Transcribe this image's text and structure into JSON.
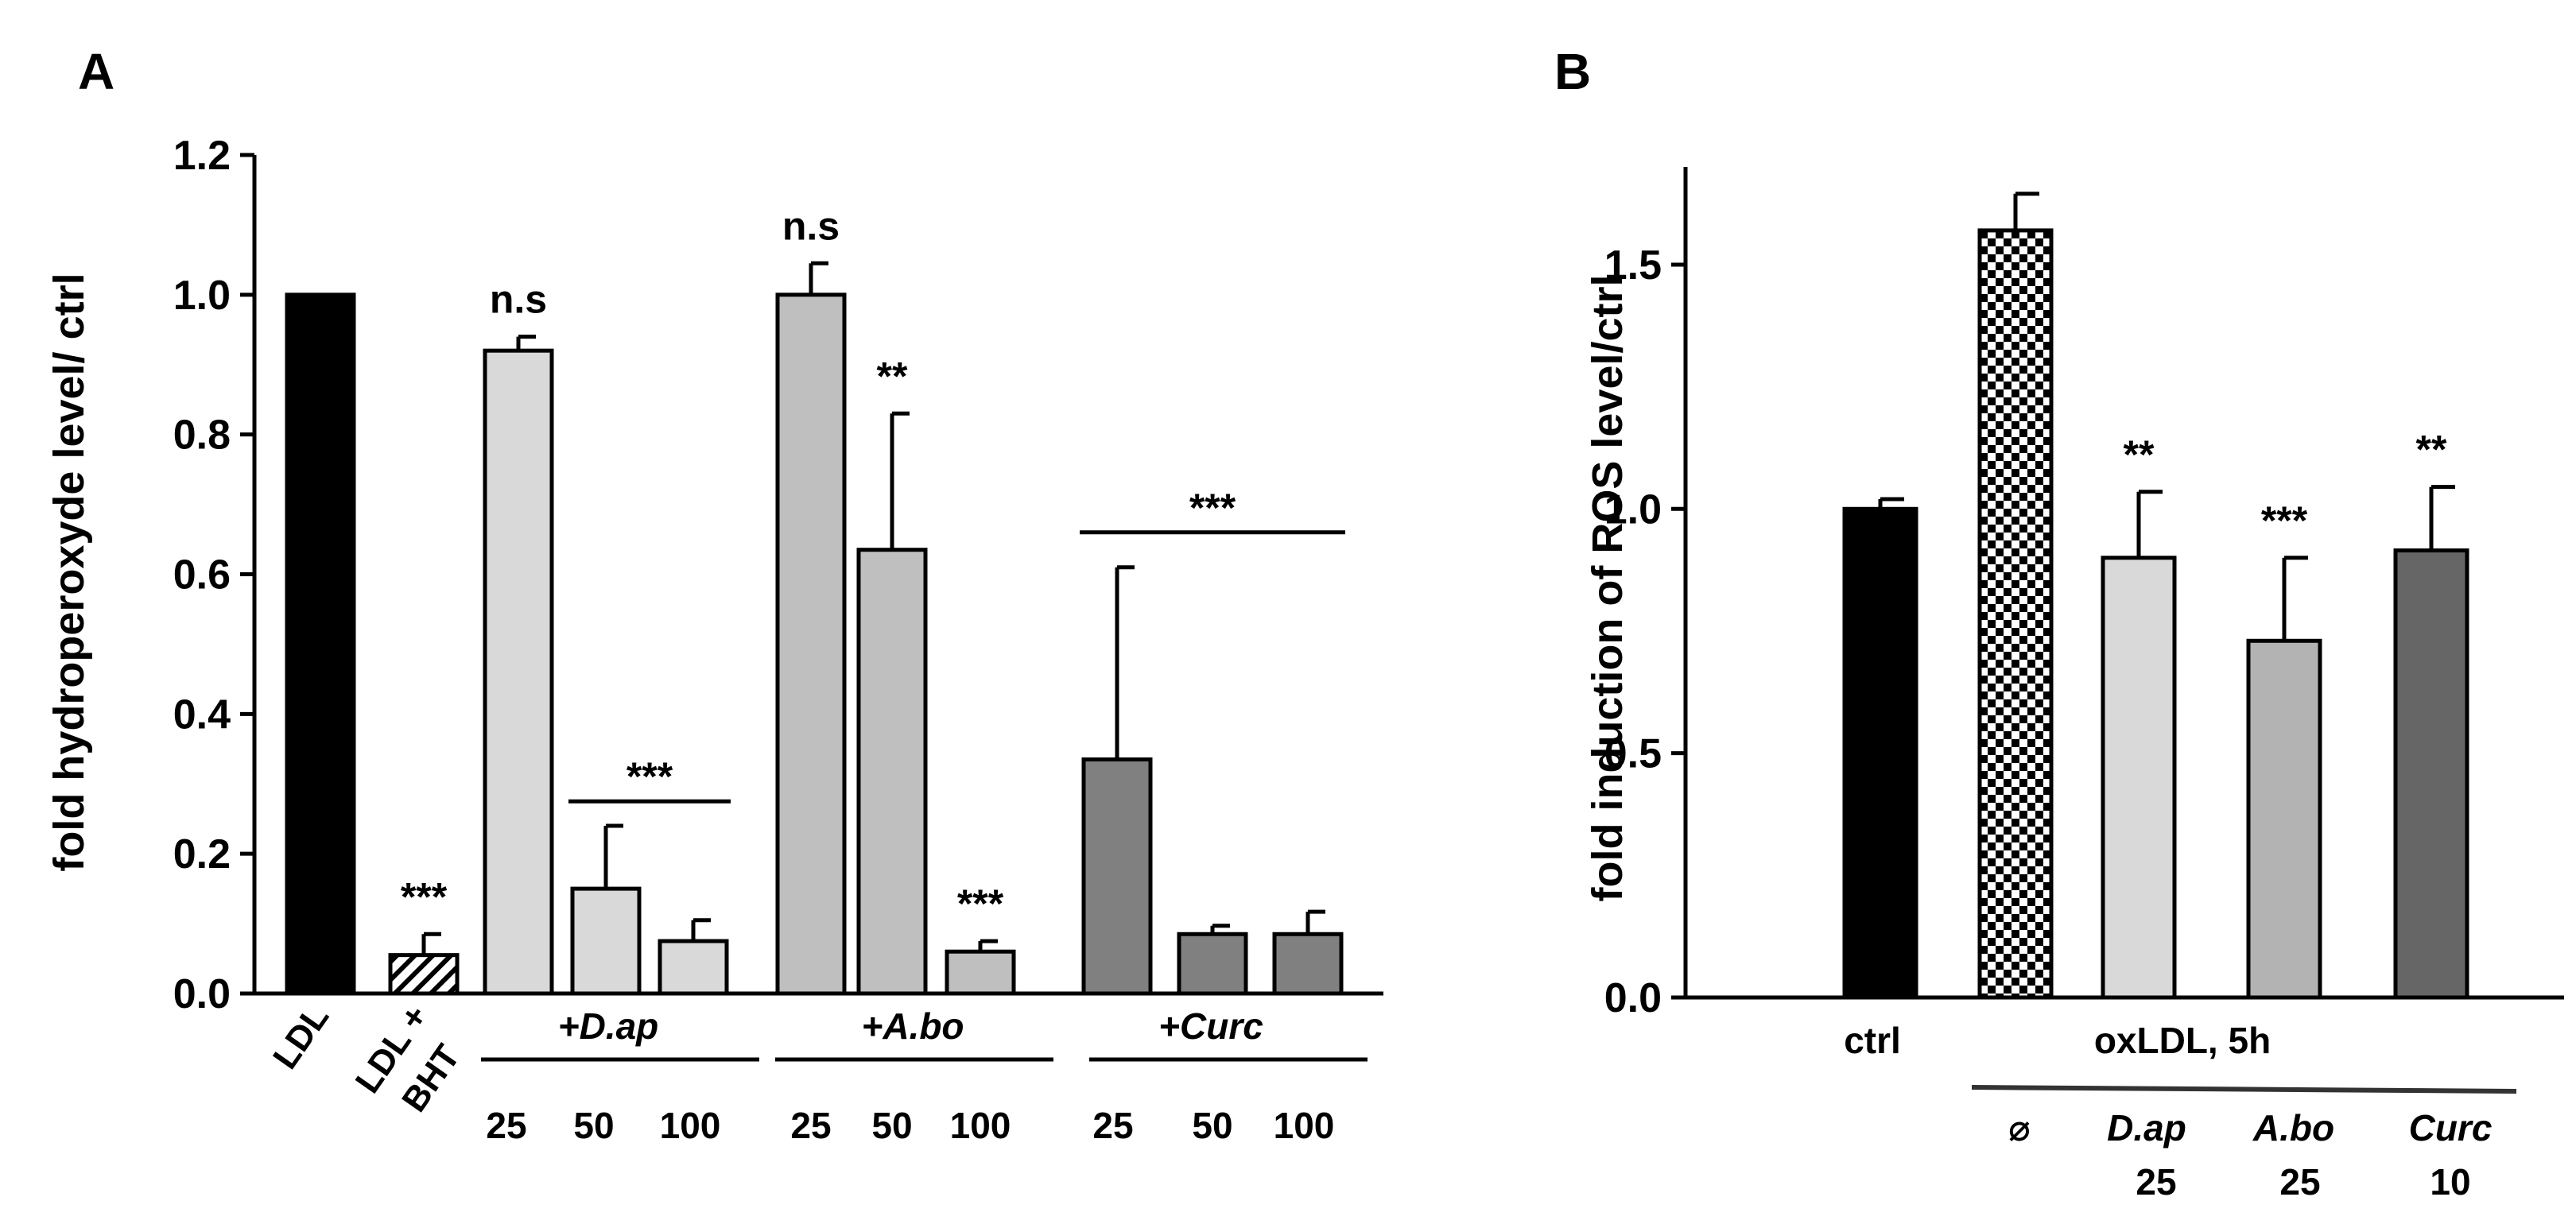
{
  "chart_data": [
    {
      "panel": "A",
      "type": "bar",
      "title": "",
      "ylabel": "fold hydroperoxyde level/ ctrl",
      "xlabel": "",
      "ylim": [
        0,
        1.2
      ],
      "yticks": [
        "0.0",
        "0.2",
        "0.4",
        "0.6",
        "0.8",
        "1.0",
        "1.2"
      ],
      "grid": false,
      "bars": [
        {
          "id": "ldl",
          "value": 1.0,
          "error": 0,
          "fill": "black",
          "sig": ""
        },
        {
          "id": "ldl-bht",
          "value": 0.055,
          "error": 0.03,
          "fill": "hatch",
          "sig": "***"
        },
        {
          "id": "dap-25",
          "value": 0.92,
          "error": 0.02,
          "fill": "#d9d9d9",
          "sig": "n.s"
        },
        {
          "id": "dap-50",
          "value": 0.15,
          "error": 0.09,
          "fill": "#d9d9d9",
          "sig": ""
        },
        {
          "id": "dap-100",
          "value": 0.075,
          "error": 0.03,
          "fill": "#d9d9d9",
          "sig": ""
        },
        {
          "id": "abo-25",
          "value": 1.0,
          "error": 0.045,
          "fill": "#bfbfbf",
          "sig": "n.s"
        },
        {
          "id": "abo-50",
          "value": 0.635,
          "error": 0.195,
          "fill": "#bfbfbf",
          "sig": "**"
        },
        {
          "id": "abo-100",
          "value": 0.06,
          "error": 0.015,
          "fill": "#bfbfbf",
          "sig": "***"
        },
        {
          "id": "curc-25",
          "value": 0.335,
          "error": 0.275,
          "fill": "#808080",
          "sig": ""
        },
        {
          "id": "curc-50",
          "value": 0.085,
          "error": 0.012,
          "fill": "#808080",
          "sig": ""
        },
        {
          "id": "curc-100",
          "value": 0.085,
          "error": 0.032,
          "fill": "#808080",
          "sig": ""
        }
      ],
      "group_sig": [
        {
          "label": "***",
          "from": 3,
          "to": 4,
          "y": 0.275
        },
        {
          "label": "***",
          "from": 8,
          "to": 10,
          "y": 0.66
        }
      ],
      "tick_labels": [
        "LDL",
        "LDL +",
        "BHT"
      ],
      "groups": [
        {
          "label": "+D.ap",
          "doses": [
            "25",
            "50",
            "100"
          ]
        },
        {
          "label": "+A.bo",
          "doses": [
            "25",
            "50",
            "100"
          ]
        },
        {
          "label": "+Curc",
          "doses": [
            "25",
            "50",
            "100"
          ]
        }
      ]
    },
    {
      "panel": "B",
      "type": "bar",
      "title": "",
      "ylabel": "fold induction of ROS level/ctrl",
      "xlabel": "",
      "ylim": [
        0,
        1.7
      ],
      "yticks": [
        "0.0",
        "0.5",
        "1.0",
        "1.5"
      ],
      "grid": false,
      "bars": [
        {
          "id": "ctrl",
          "value": 1.0,
          "error": 0.02,
          "fill": "black",
          "sig": ""
        },
        {
          "id": "oxldl",
          "value": 1.57,
          "error": 0.075,
          "fill": "checker",
          "sig": ""
        },
        {
          "id": "dap-25",
          "value": 0.9,
          "error": 0.135,
          "fill": "#d9d9d9",
          "sig": "**"
        },
        {
          "id": "abo-25",
          "value": 0.73,
          "error": 0.17,
          "fill": "#b3b3b3",
          "sig": "***"
        },
        {
          "id": "curc-10",
          "value": 0.915,
          "error": 0.13,
          "fill": "#666666",
          "sig": "**"
        }
      ],
      "ctrl_label": "ctrl",
      "treatment_label": "oxLDL, 5h",
      "sub_labels": [
        {
          "name": "⌀",
          "dose": ""
        },
        {
          "name": "D.ap",
          "dose": "25"
        },
        {
          "name": "A.bo",
          "dose": "25"
        },
        {
          "name": "Curc",
          "dose": "10"
        }
      ]
    }
  ],
  "panel_labels": [
    "A",
    "B"
  ],
  "colors": {
    "axis": "#000000"
  }
}
